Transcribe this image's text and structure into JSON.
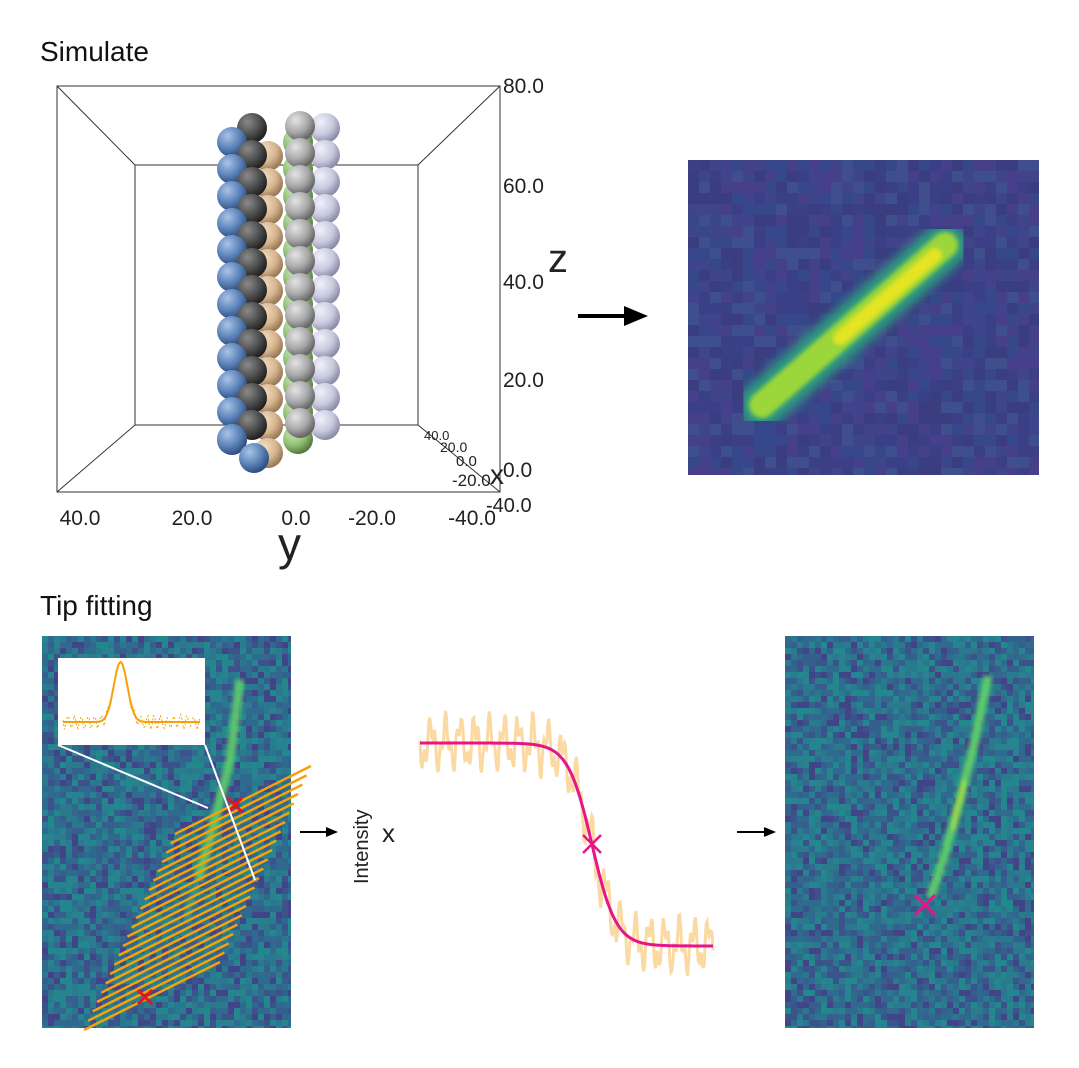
{
  "sections": {
    "simulate_title": "Simulate",
    "tip_title": "Tip fitting"
  },
  "plot3d": {
    "z_label": "z",
    "y_label": "y",
    "x_label": "x",
    "z_ticks": [
      "80.0",
      "60.0",
      "40.0",
      "20.0",
      "0.0"
    ],
    "y_ticks": [
      "40.0",
      "20.0",
      "0.0",
      "-20.0",
      "-40.0"
    ],
    "x_ticks": [
      "40.0",
      "20.0",
      "0.0",
      "-20.0",
      "-40.0"
    ],
    "sphere_colors": [
      "#5b82b8",
      "#d7b690",
      "#8fbf73",
      "#a8a8a8",
      "#4d4d4d",
      "#c8cadf"
    ]
  },
  "profile_plot": {
    "y_label": "Intensity",
    "x_label": "x",
    "fit_color": "#e6158a",
    "data_color": "#fbd9a3"
  },
  "colors": {
    "scan_lines": "#f5a20a",
    "tip_marker_initial": "#e8141c",
    "tip_marker_fit": "#e6158a",
    "viridis_bg": "#3b4f8c"
  }
}
